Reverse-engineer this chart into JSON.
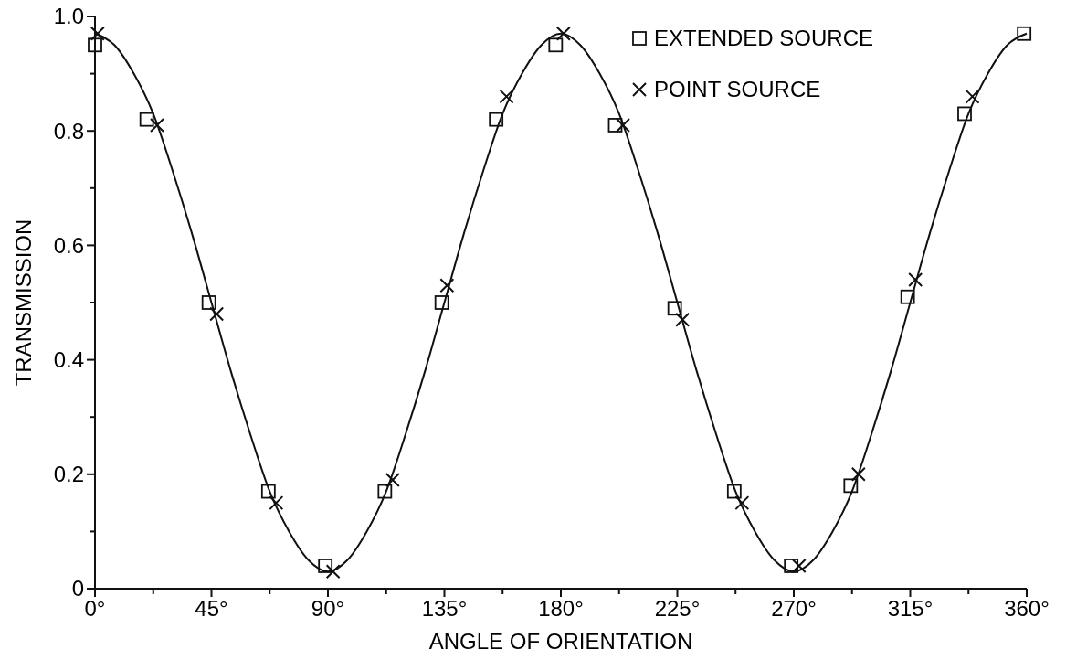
{
  "chart_data": {
    "type": "scatter",
    "xlabel": "ANGLE OF ORIENTATION",
    "ylabel": "TRANSMISSION",
    "xlim": [
      0,
      360
    ],
    "ylim": [
      0,
      1
    ],
    "xticks": [
      {
        "value": 0,
        "label": "0°"
      },
      {
        "value": 22.5,
        "label": null
      },
      {
        "value": 45,
        "label": "45°"
      },
      {
        "value": 67.5,
        "label": null
      },
      {
        "value": 90,
        "label": "90°"
      },
      {
        "value": 112.5,
        "label": null
      },
      {
        "value": 135,
        "label": "135°"
      },
      {
        "value": 157.5,
        "label": null
      },
      {
        "value": 180,
        "label": "180°"
      },
      {
        "value": 202.5,
        "label": null
      },
      {
        "value": 225,
        "label": "225°"
      },
      {
        "value": 247.5,
        "label": null
      },
      {
        "value": 270,
        "label": "270°"
      },
      {
        "value": 292.5,
        "label": null
      },
      {
        "value": 315,
        "label": "315°"
      },
      {
        "value": 337.5,
        "label": null
      },
      {
        "value": 360,
        "label": "360°"
      }
    ],
    "yticks": [
      0,
      {
        "value": 0.1,
        "label": null
      },
      0.2,
      {
        "value": 0.3,
        "label": null
      },
      0.4,
      {
        "value": 0.5,
        "label": null
      },
      0.6,
      {
        "value": 0.7,
        "label": null
      },
      0.8,
      {
        "value": 0.9,
        "label": null
      },
      {
        "value": 1,
        "label": "1.0"
      }
    ],
    "grid": false,
    "legend": "top right",
    "series": [
      {
        "type": "line",
        "color": "#111111",
        "marker": "none",
        "line_style": "solid",
        "x": [
          0,
          7.5,
          15,
          22.5,
          30,
          37.5,
          45,
          52.5,
          60,
          67.5,
          75,
          82.5,
          90,
          97.5,
          105,
          112.5,
          120,
          127.5,
          135,
          142.5,
          150,
          157.5,
          165,
          172.5,
          180,
          187.5,
          195,
          202.5,
          210,
          217.5,
          225,
          232.5,
          240,
          247.5,
          255,
          262.5,
          270,
          277.5,
          285,
          292.5,
          300,
          307.5,
          315,
          322.5,
          330,
          337.5,
          345,
          352.5,
          360
        ],
        "values": [
          0.97,
          0.95,
          0.9,
          0.83,
          0.73,
          0.62,
          0.5,
          0.38,
          0.27,
          0.17,
          0.1,
          0.05,
          0.03,
          0.05,
          0.1,
          0.17,
          0.27,
          0.38,
          0.5,
          0.62,
          0.73,
          0.83,
          0.9,
          0.95,
          0.97,
          0.95,
          0.9,
          0.83,
          0.73,
          0.62,
          0.5,
          0.38,
          0.27,
          0.17,
          0.1,
          0.05,
          0.03,
          0.05,
          0.1,
          0.17,
          0.27,
          0.38,
          0.5,
          0.62,
          0.73,
          0.83,
          0.9,
          0.95,
          0.97
        ]
      },
      {
        "name": "EXTENDED SOURCE",
        "color": "#111111",
        "marker": "square",
        "x": [
          0,
          20,
          44,
          67,
          89,
          112,
          134,
          155,
          178,
          201,
          224,
          247,
          269,
          292,
          314,
          336,
          359
        ],
        "values": [
          0.95,
          0.82,
          0.5,
          0.17,
          0.04,
          0.17,
          0.5,
          0.82,
          0.95,
          0.81,
          0.49,
          0.17,
          0.04,
          0.18,
          0.51,
          0.83,
          0.97
        ]
      },
      {
        "name": "POINT SOURCE",
        "color": "#111111",
        "marker": "cross",
        "x": [
          1,
          24,
          47,
          70,
          92,
          115,
          136,
          159,
          181,
          204,
          227,
          250,
          272,
          295,
          317,
          339
        ],
        "values": [
          0.97,
          0.81,
          0.48,
          0.15,
          0.03,
          0.19,
          0.53,
          0.86,
          0.97,
          0.81,
          0.47,
          0.15,
          0.04,
          0.2,
          0.54,
          0.86
        ]
      }
    ]
  }
}
